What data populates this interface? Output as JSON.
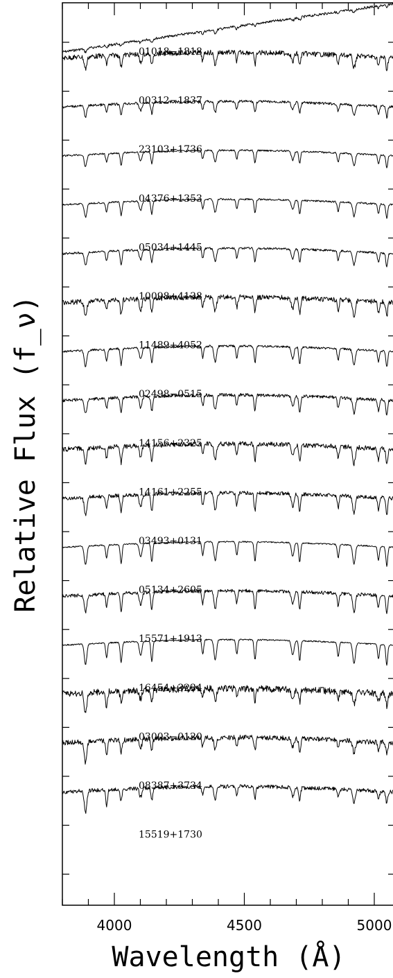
{
  "chart_data": {
    "type": "line",
    "xlabel": "Wavelength (Å)",
    "ylabel": "Relative Flux (f_ν)",
    "xlim": [
      3800,
      5080
    ],
    "x_ticks": [
      4000,
      4500,
      5000
    ],
    "x_tick_labels": [
      "4000",
      "4500",
      "5000"
    ],
    "y_ticks_count": 19,
    "grid": false,
    "absorption_lines": [
      3889,
      3970,
      4026,
      4101,
      4144,
      4340,
      4388,
      4471,
      4541,
      4686,
      4713,
      4861,
      4922,
      5016,
      5048
    ],
    "series": [
      {
        "name": "01018−1818",
        "offset": 0,
        "slope": 1.0,
        "noise": 0.6,
        "depth": 0.5,
        "profile": "hot"
      },
      {
        "name": "00312−1837",
        "offset": 1,
        "slope": 0.0,
        "noise": 1.2,
        "depth": 0.9,
        "profile": "he"
      },
      {
        "name": "23103+1736",
        "offset": 2,
        "slope": 0.0,
        "noise": 0.6,
        "depth": 0.8,
        "profile": "he"
      },
      {
        "name": "04376+1353",
        "offset": 3,
        "slope": 0.0,
        "noise": 0.4,
        "depth": 0.9,
        "profile": "he"
      },
      {
        "name": "05034+1445",
        "offset": 4,
        "slope": 0.0,
        "noise": 0.4,
        "depth": 1.0,
        "profile": "he"
      },
      {
        "name": "10098+4138",
        "offset": 5,
        "slope": 0.0,
        "noise": 0.5,
        "depth": 1.0,
        "profile": "he"
      },
      {
        "name": "11489+4052",
        "offset": 6,
        "slope": 0.0,
        "noise": 1.2,
        "depth": 1.1,
        "profile": "he"
      },
      {
        "name": "02498−0515",
        "offset": 7,
        "slope": 0.0,
        "noise": 0.5,
        "depth": 1.2,
        "profile": "he"
      },
      {
        "name": "14156+2325",
        "offset": 8,
        "slope": 0.0,
        "noise": 0.8,
        "depth": 1.1,
        "profile": "he"
      },
      {
        "name": "14161+2255",
        "offset": 9,
        "slope": 0.0,
        "noise": 1.1,
        "depth": 1.2,
        "profile": "he"
      },
      {
        "name": "03493+0131",
        "offset": 10,
        "slope": 0.0,
        "noise": 0.9,
        "depth": 1.3,
        "profile": "he"
      },
      {
        "name": "05134+2605",
        "offset": 11,
        "slope": 0.0,
        "noise": 0.3,
        "depth": 1.4,
        "profile": "he"
      },
      {
        "name": "15571+1913",
        "offset": 12,
        "slope": 0.0,
        "noise": 0.8,
        "depth": 1.3,
        "profile": "he"
      },
      {
        "name": "16454+3234",
        "offset": 13,
        "slope": 0.0,
        "noise": 0.3,
        "depth": 1.5,
        "profile": "he"
      },
      {
        "name": "03003−0120",
        "offset": 14,
        "slope": 0.0,
        "noise": 1.6,
        "depth": 0.9,
        "profile": "metal"
      },
      {
        "name": "08387+3734",
        "offset": 15,
        "slope": 0.0,
        "noise": 1.2,
        "depth": 0.9,
        "profile": "metal"
      },
      {
        "name": "15519+1730",
        "offset": 16,
        "slope": 0.0,
        "noise": 0.9,
        "depth": 0.9,
        "profile": "metal"
      }
    ]
  }
}
